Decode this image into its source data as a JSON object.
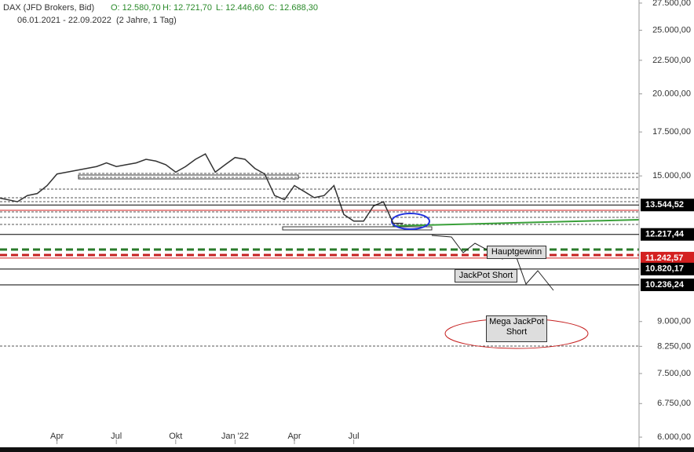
{
  "header": {
    "symbol": "DAX (JFD Brokers, Bid)",
    "open": "O: 12.580,70",
    "high": "H: 12.721,70",
    "low": "L: 12.446,60",
    "close": "C: 12.688,30",
    "range": "06.01.2021 - 22.09.2022",
    "period": "(2 Jahre, 1 Tag)"
  },
  "chart_data": {
    "type": "line",
    "log_scale": true,
    "grid": false,
    "color": "#333333",
    "categories": [
      null,
      null,
      null,
      null,
      null,
      null,
      "Apr",
      null,
      null,
      null,
      null,
      null,
      "Jul",
      null,
      null,
      null,
      null,
      null,
      "Okt",
      null,
      null,
      null,
      null,
      null,
      "Jan '22",
      null,
      null,
      null,
      null,
      null,
      "Apr",
      null,
      null,
      null,
      null,
      null,
      "Jul",
      null,
      null,
      null,
      null,
      null
    ],
    "values": [
      13900,
      13800,
      13700,
      14000,
      14100,
      14500,
      15100,
      15200,
      15300,
      15400,
      15500,
      15700,
      15500,
      15600,
      15700,
      15900,
      15800,
      15600,
      15200,
      15500,
      15900,
      16200,
      15200,
      15600,
      16000,
      15900,
      15400,
      15100,
      14000,
      13800,
      14500,
      14200,
      13900,
      14000,
      14500,
      13100,
      12800,
      12800,
      13500,
      13700,
      12700,
      12700
    ],
    "ylim": [
      5790,
      27800
    ],
    "yticks": [
      {
        "value": 27500,
        "label": "27.500,00"
      },
      {
        "value": 25000,
        "label": "25.000,00"
      },
      {
        "value": 22500,
        "label": "22.500,00"
      },
      {
        "value": 20000,
        "label": "20.000,00"
      },
      {
        "value": 17500,
        "label": "17.500,00"
      },
      {
        "value": 15000,
        "label": "15.000,00"
      },
      {
        "value": 9000,
        "label": "9.000,00"
      },
      {
        "value": 8250,
        "label": "8.250,00"
      },
      {
        "value": 7500,
        "label": "7.500,00"
      },
      {
        "value": 6750,
        "label": "6.750,00"
      },
      {
        "value": 6000,
        "label": "6.000,00"
      }
    ],
    "levels": [
      {
        "value": 13544.52,
        "label": "13.544,52",
        "color": "#000000"
      },
      {
        "value": 12217.44,
        "label": "12.217,44",
        "color": "#000000"
      },
      {
        "value": 11242.57,
        "label": "11.242,57",
        "color": "#d42020"
      },
      {
        "value": 10820.17,
        "label": "10.820,17",
        "color": "#000000"
      },
      {
        "value": 10236.24,
        "label": "10.236,24",
        "color": "#000000"
      }
    ],
    "annotations": [
      "Hauptgewinn",
      "JackPot Short",
      "Mega JackPot Short"
    ]
  }
}
